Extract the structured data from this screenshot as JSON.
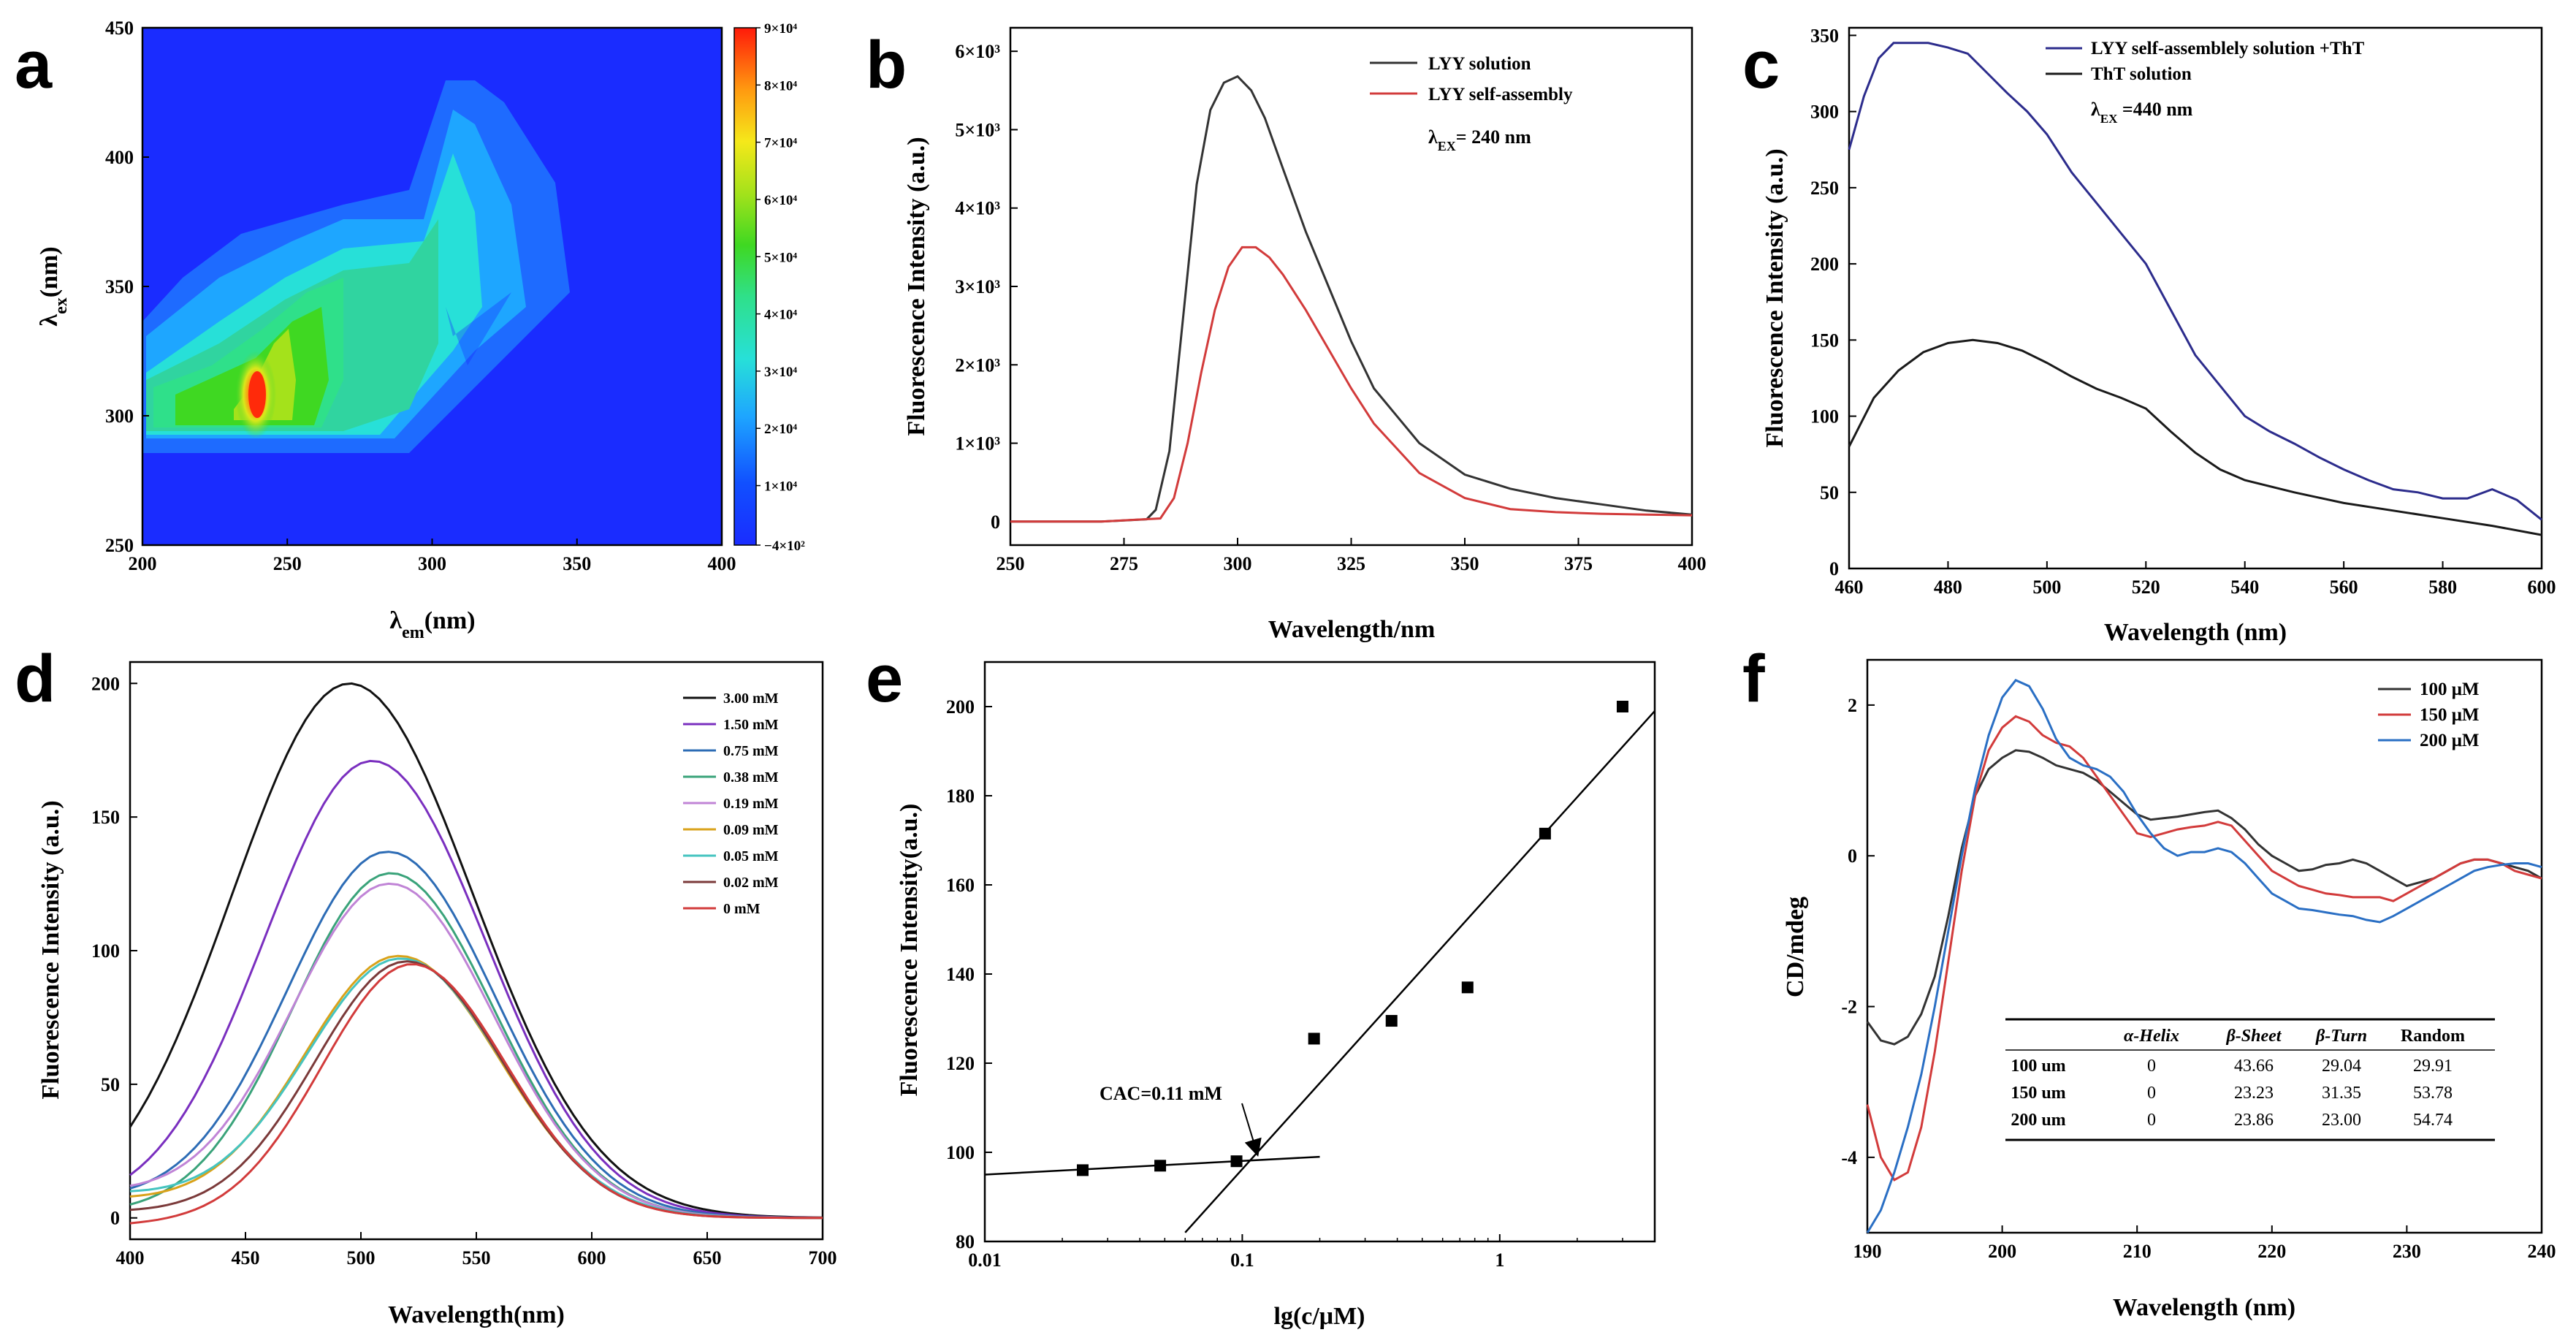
{
  "panels": [
    {
      "id": "a",
      "letter": "a",
      "type": "heatmap",
      "xlabel_main": "λ",
      "xlabel_sub": "em",
      "xlabel_unit": "(nm)",
      "ylabel_main": "λ",
      "ylabel_sub": "ex",
      "ylabel_unit": "(nm)",
      "xlim": [
        200,
        400
      ],
      "ylim": [
        250,
        450
      ],
      "xticks": [
        "200",
        "250",
        "300",
        "350",
        "400"
      ],
      "yticks": [
        "250",
        "300",
        "350",
        "400",
        "450"
      ],
      "colorbar": {
        "range": [
          -400,
          90000
        ],
        "labels": [
          "9×10⁴",
          "8×10⁴",
          "7×10⁴",
          "6×10⁴",
          "5×10⁴",
          "4×10⁴",
          "3×10⁴",
          "2×10⁴",
          "1×10⁴",
          "−4×10²"
        ],
        "values": [
          90000,
          80000,
          70000,
          60000,
          50000,
          40000,
          30000,
          20000,
          10000,
          -400
        ]
      },
      "peak": {
        "x": 240,
        "y": 308,
        "value": 90000
      }
    },
    {
      "id": "b",
      "letter": "b",
      "type": "line",
      "xlabel": "Wavelength/nm",
      "ylabel": "Fluorescence Intensity (a.u.)",
      "xlim": [
        250,
        400
      ],
      "ylim": [
        -300,
        6300
      ],
      "xticks": [
        "250",
        "275",
        "300",
        "325",
        "350",
        "375",
        "400"
      ],
      "xtick_values": [
        250,
        275,
        300,
        325,
        350,
        375,
        400
      ],
      "yticks": [
        "0",
        "1×10³",
        "2×10³",
        "3×10³",
        "4×10³",
        "5×10³",
        "6×10³"
      ],
      "ytick_values": [
        0,
        1000,
        2000,
        3000,
        4000,
        5000,
        6000
      ],
      "annotation": {
        "main": "λ",
        "sub": "EX",
        "rest": "= 240 nm"
      },
      "series": [
        {
          "name": "LYY solution",
          "color": "#333333",
          "x": [
            250,
            270,
            280,
            282,
            285,
            288,
            291,
            294,
            297,
            300,
            303,
            306,
            310,
            315,
            320,
            325,
            330,
            340,
            350,
            360,
            370,
            380,
            390,
            400
          ],
          "y": [
            0,
            0,
            30,
            150,
            900,
            2600,
            4300,
            5250,
            5600,
            5680,
            5500,
            5150,
            4500,
            3700,
            3000,
            2300,
            1700,
            1000,
            600,
            420,
            300,
            220,
            140,
            90
          ]
        },
        {
          "name": "LYY self-assembly",
          "color": "#d23b3b",
          "x": [
            250,
            270,
            283,
            286,
            289,
            292,
            295,
            298,
            301,
            304,
            307,
            310,
            315,
            320,
            325,
            330,
            340,
            350,
            360,
            370,
            380,
            390,
            400
          ],
          "y": [
            0,
            0,
            40,
            300,
            1000,
            1900,
            2700,
            3250,
            3500,
            3500,
            3370,
            3150,
            2700,
            2200,
            1700,
            1250,
            620,
            300,
            160,
            120,
            100,
            90,
            80
          ]
        }
      ]
    },
    {
      "id": "c",
      "letter": "c",
      "type": "line",
      "xlabel": "Wavelength (nm)",
      "ylabel": "Fluorescence Intensity (a.u.)",
      "xlim": [
        460,
        600
      ],
      "ylim": [
        0,
        355
      ],
      "xticks": [
        "460",
        "480",
        "500",
        "520",
        "540",
        "560",
        "580",
        "600"
      ],
      "xtick_values": [
        460,
        480,
        500,
        520,
        540,
        560,
        580,
        600
      ],
      "yticks": [
        "0",
        "50",
        "100",
        "150",
        "200",
        "250",
        "300",
        "350"
      ],
      "ytick_values": [
        0,
        50,
        100,
        150,
        200,
        250,
        300,
        350
      ],
      "annotation": {
        "main": "λ",
        "sub": "EX",
        "rest": " =440 nm"
      },
      "series": [
        {
          "name": "LYY self-assemblely solution +ThT",
          "color": "#2c2c8c",
          "x": [
            460,
            463,
            466,
            469,
            472,
            476,
            480,
            484,
            488,
            492,
            496,
            500,
            505,
            510,
            515,
            520,
            525,
            530,
            535,
            540,
            545,
            550,
            555,
            560,
            565,
            570,
            575,
            580,
            585,
            590,
            595,
            600
          ],
          "y": [
            275,
            310,
            335,
            345,
            345,
            345,
            342,
            338,
            325,
            312,
            300,
            285,
            260,
            240,
            220,
            200,
            170,
            140,
            120,
            100,
            90,
            82,
            73,
            65,
            58,
            52,
            50,
            46,
            46,
            52,
            45,
            32
          ]
        },
        {
          "name": "ThT solution",
          "color": "#1a1a1a",
          "x": [
            460,
            465,
            470,
            475,
            480,
            485,
            490,
            495,
            500,
            505,
            510,
            515,
            520,
            525,
            530,
            535,
            540,
            550,
            560,
            570,
            580,
            590,
            600
          ],
          "y": [
            80,
            112,
            130,
            142,
            148,
            150,
            148,
            143,
            135,
            126,
            118,
            112,
            105,
            90,
            76,
            65,
            58,
            50,
            43,
            38,
            33,
            28,
            22
          ]
        }
      ]
    },
    {
      "id": "d",
      "letter": "d",
      "type": "line",
      "xlabel": "Wavelength(nm)",
      "ylabel": "Fluorescence Intensity (a.u.)",
      "xlim": [
        400,
        700
      ],
      "ylim": [
        -8,
        208
      ],
      "xticks": [
        "400",
        "450",
        "500",
        "550",
        "600",
        "650",
        "700"
      ],
      "xtick_values": [
        400,
        450,
        500,
        550,
        600,
        650,
        700
      ],
      "yticks": [
        "0",
        "50",
        "100",
        "150",
        "200"
      ],
      "ytick_values": [
        0,
        50,
        100,
        150,
        200
      ],
      "series": [
        {
          "name": "3.00 mM",
          "color": "#111111",
          "peak_x": 495,
          "peak_y": 200,
          "w": 72,
          "start": 34
        },
        {
          "name": "1.50 mM",
          "color": "#7a2fbf",
          "peak_x": 505,
          "peak_y": 171,
          "w": 66,
          "start": 16
        },
        {
          "name": "0.75 mM",
          "color": "#2d6cb5",
          "peak_x": 512,
          "peak_y": 137,
          "w": 62,
          "start": 11
        },
        {
          "name": "0.38 mM",
          "color": "#3aa37a",
          "peak_x": 513,
          "peak_y": 129,
          "w": 60,
          "start": 5
        },
        {
          "name": "0.19 mM",
          "color": "#c084d6",
          "peak_x": 513,
          "peak_y": 125,
          "w": 60,
          "start": 12
        },
        {
          "name": "0.09 mM",
          "color": "#d9a21a",
          "peak_x": 517,
          "peak_y": 98,
          "w": 58,
          "start": 8
        },
        {
          "name": "0.05 mM",
          "color": "#45c4c0",
          "peak_x": 518,
          "peak_y": 97,
          "w": 58,
          "start": 10
        },
        {
          "name": "0.02 mM",
          "color": "#7b3a3a",
          "peak_x": 520,
          "peak_y": 96,
          "w": 56,
          "start": 3
        },
        {
          "name": "0 mM",
          "color": "#d23b3b",
          "peak_x": 522,
          "peak_y": 95,
          "w": 55,
          "start": -2
        }
      ]
    },
    {
      "id": "e",
      "letter": "e",
      "type": "scatter",
      "xlabel": "lg(c/μM)",
      "ylabel": "Fluorescence Intensity(a.u.)",
      "xscale": "log",
      "xlim": [
        0.01,
        4
      ],
      "ylim": [
        80,
        210
      ],
      "xticks": [
        "0.01",
        "0.1",
        "1"
      ],
      "xtick_values": [
        0.01,
        0.1,
        1
      ],
      "yticks": [
        "80",
        "100",
        "120",
        "140",
        "160",
        "180",
        "200"
      ],
      "ytick_values": [
        80,
        100,
        120,
        140,
        160,
        180,
        200
      ],
      "points": {
        "x": [
          0.024,
          0.048,
          0.095,
          0.19,
          0.38,
          0.75,
          1.5,
          3.0
        ],
        "y": [
          96,
          97,
          98,
          125.5,
          129.5,
          137,
          171.5,
          200
        ]
      },
      "fit_lines": [
        {
          "x": [
            0.01,
            0.2
          ],
          "y": [
            95,
            99
          ]
        },
        {
          "x": [
            0.06,
            4.0
          ],
          "y": [
            82,
            199
          ]
        }
      ],
      "annotation": "CAC=0.11 mM",
      "arrow_to": {
        "x": 0.11,
        "y": 98
      }
    },
    {
      "id": "f",
      "letter": "f",
      "type": "line",
      "xlabel": "Wavelength (nm)",
      "ylabel": "CD/mdeg",
      "xlim": [
        190,
        240
      ],
      "ylim": [
        -5,
        2.6
      ],
      "xticks": [
        "190",
        "200",
        "210",
        "220",
        "230",
        "240"
      ],
      "xtick_values": [
        190,
        200,
        210,
        220,
        230,
        240
      ],
      "yticks": [
        "-4",
        "-2",
        "0",
        "2"
      ],
      "ytick_values": [
        -4,
        -2,
        0,
        2
      ],
      "series": [
        {
          "name": "100 μM",
          "color": "#333333",
          "x": [
            190,
            191,
            192,
            193,
            194,
            195,
            196,
            197,
            198,
            199,
            200,
            201,
            202,
            203,
            204,
            205,
            206,
            207,
            208,
            209,
            210,
            211,
            212,
            213,
            214,
            215,
            216,
            217,
            218,
            219,
            220,
            221,
            222,
            223,
            224,
            225,
            226,
            227,
            228,
            229,
            230,
            231,
            232,
            233,
            234,
            235,
            236,
            237,
            238,
            239,
            240
          ],
          "y": [
            -2.2,
            -2.45,
            -2.5,
            -2.4,
            -2.1,
            -1.6,
            -0.8,
            0.1,
            0.8,
            1.15,
            1.3,
            1.4,
            1.38,
            1.3,
            1.2,
            1.15,
            1.1,
            1.0,
            0.85,
            0.7,
            0.55,
            0.48,
            0.5,
            0.52,
            0.55,
            0.58,
            0.6,
            0.5,
            0.35,
            0.15,
            0.0,
            -0.1,
            -0.2,
            -0.18,
            -0.12,
            -0.1,
            -0.05,
            -0.1,
            -0.2,
            -0.3,
            -0.4,
            -0.35,
            -0.3,
            -0.2,
            -0.1,
            -0.05,
            -0.05,
            -0.1,
            -0.15,
            -0.2,
            -0.3
          ]
        },
        {
          "name": "150 μM",
          "color": "#d23b3b",
          "x": [
            190,
            191,
            192,
            193,
            194,
            195,
            196,
            197,
            198,
            199,
            200,
            201,
            202,
            203,
            204,
            205,
            206,
            207,
            208,
            209,
            210,
            211,
            212,
            213,
            214,
            215,
            216,
            217,
            218,
            219,
            220,
            221,
            222,
            223,
            224,
            225,
            226,
            227,
            228,
            229,
            230,
            231,
            232,
            233,
            234,
            235,
            236,
            237,
            238,
            239,
            240
          ],
          "y": [
            -3.3,
            -4.0,
            -4.3,
            -4.2,
            -3.6,
            -2.6,
            -1.4,
            -0.2,
            0.8,
            1.4,
            1.7,
            1.85,
            1.78,
            1.6,
            1.5,
            1.45,
            1.3,
            1.05,
            0.8,
            0.55,
            0.3,
            0.25,
            0.3,
            0.35,
            0.38,
            0.4,
            0.45,
            0.4,
            0.2,
            0.0,
            -0.2,
            -0.3,
            -0.4,
            -0.45,
            -0.5,
            -0.52,
            -0.55,
            -0.55,
            -0.55,
            -0.6,
            -0.5,
            -0.4,
            -0.3,
            -0.2,
            -0.1,
            -0.05,
            -0.05,
            -0.1,
            -0.2,
            -0.25,
            -0.3
          ]
        },
        {
          "name": "200 μM",
          "color": "#2a6fc4",
          "x": [
            190,
            191,
            192,
            193,
            194,
            195,
            196,
            197,
            198,
            199,
            200,
            201,
            202,
            203,
            204,
            205,
            206,
            207,
            208,
            209,
            210,
            211,
            212,
            213,
            214,
            215,
            216,
            217,
            218,
            219,
            220,
            221,
            222,
            223,
            224,
            225,
            226,
            227,
            228,
            229,
            230,
            231,
            232,
            233,
            234,
            235,
            236,
            237,
            238,
            239,
            240
          ],
          "y": [
            -5.0,
            -4.7,
            -4.2,
            -3.6,
            -2.9,
            -2.0,
            -1.0,
            0.0,
            0.9,
            1.6,
            2.1,
            2.33,
            2.25,
            1.95,
            1.55,
            1.3,
            1.2,
            1.15,
            1.05,
            0.85,
            0.55,
            0.3,
            0.1,
            0.0,
            0.05,
            0.05,
            0.1,
            0.05,
            -0.1,
            -0.3,
            -0.5,
            -0.6,
            -0.7,
            -0.72,
            -0.75,
            -0.78,
            -0.8,
            -0.85,
            -0.88,
            -0.8,
            -0.7,
            -0.6,
            -0.5,
            -0.4,
            -0.3,
            -0.2,
            -0.15,
            -0.12,
            -0.1,
            -0.1,
            -0.15
          ]
        }
      ],
      "table": {
        "headers": [
          "",
          "α-Helix",
          "β-Sheet",
          "β-Turn",
          "Random"
        ],
        "rows": [
          [
            "100 um",
            "0",
            "43.66",
            "29.04",
            "29.91"
          ],
          [
            "150 um",
            "0",
            "23.23",
            "31.35",
            "53.78"
          ],
          [
            "200 um",
            "0",
            "23.86",
            "23.00",
            "54.74"
          ]
        ]
      }
    }
  ]
}
